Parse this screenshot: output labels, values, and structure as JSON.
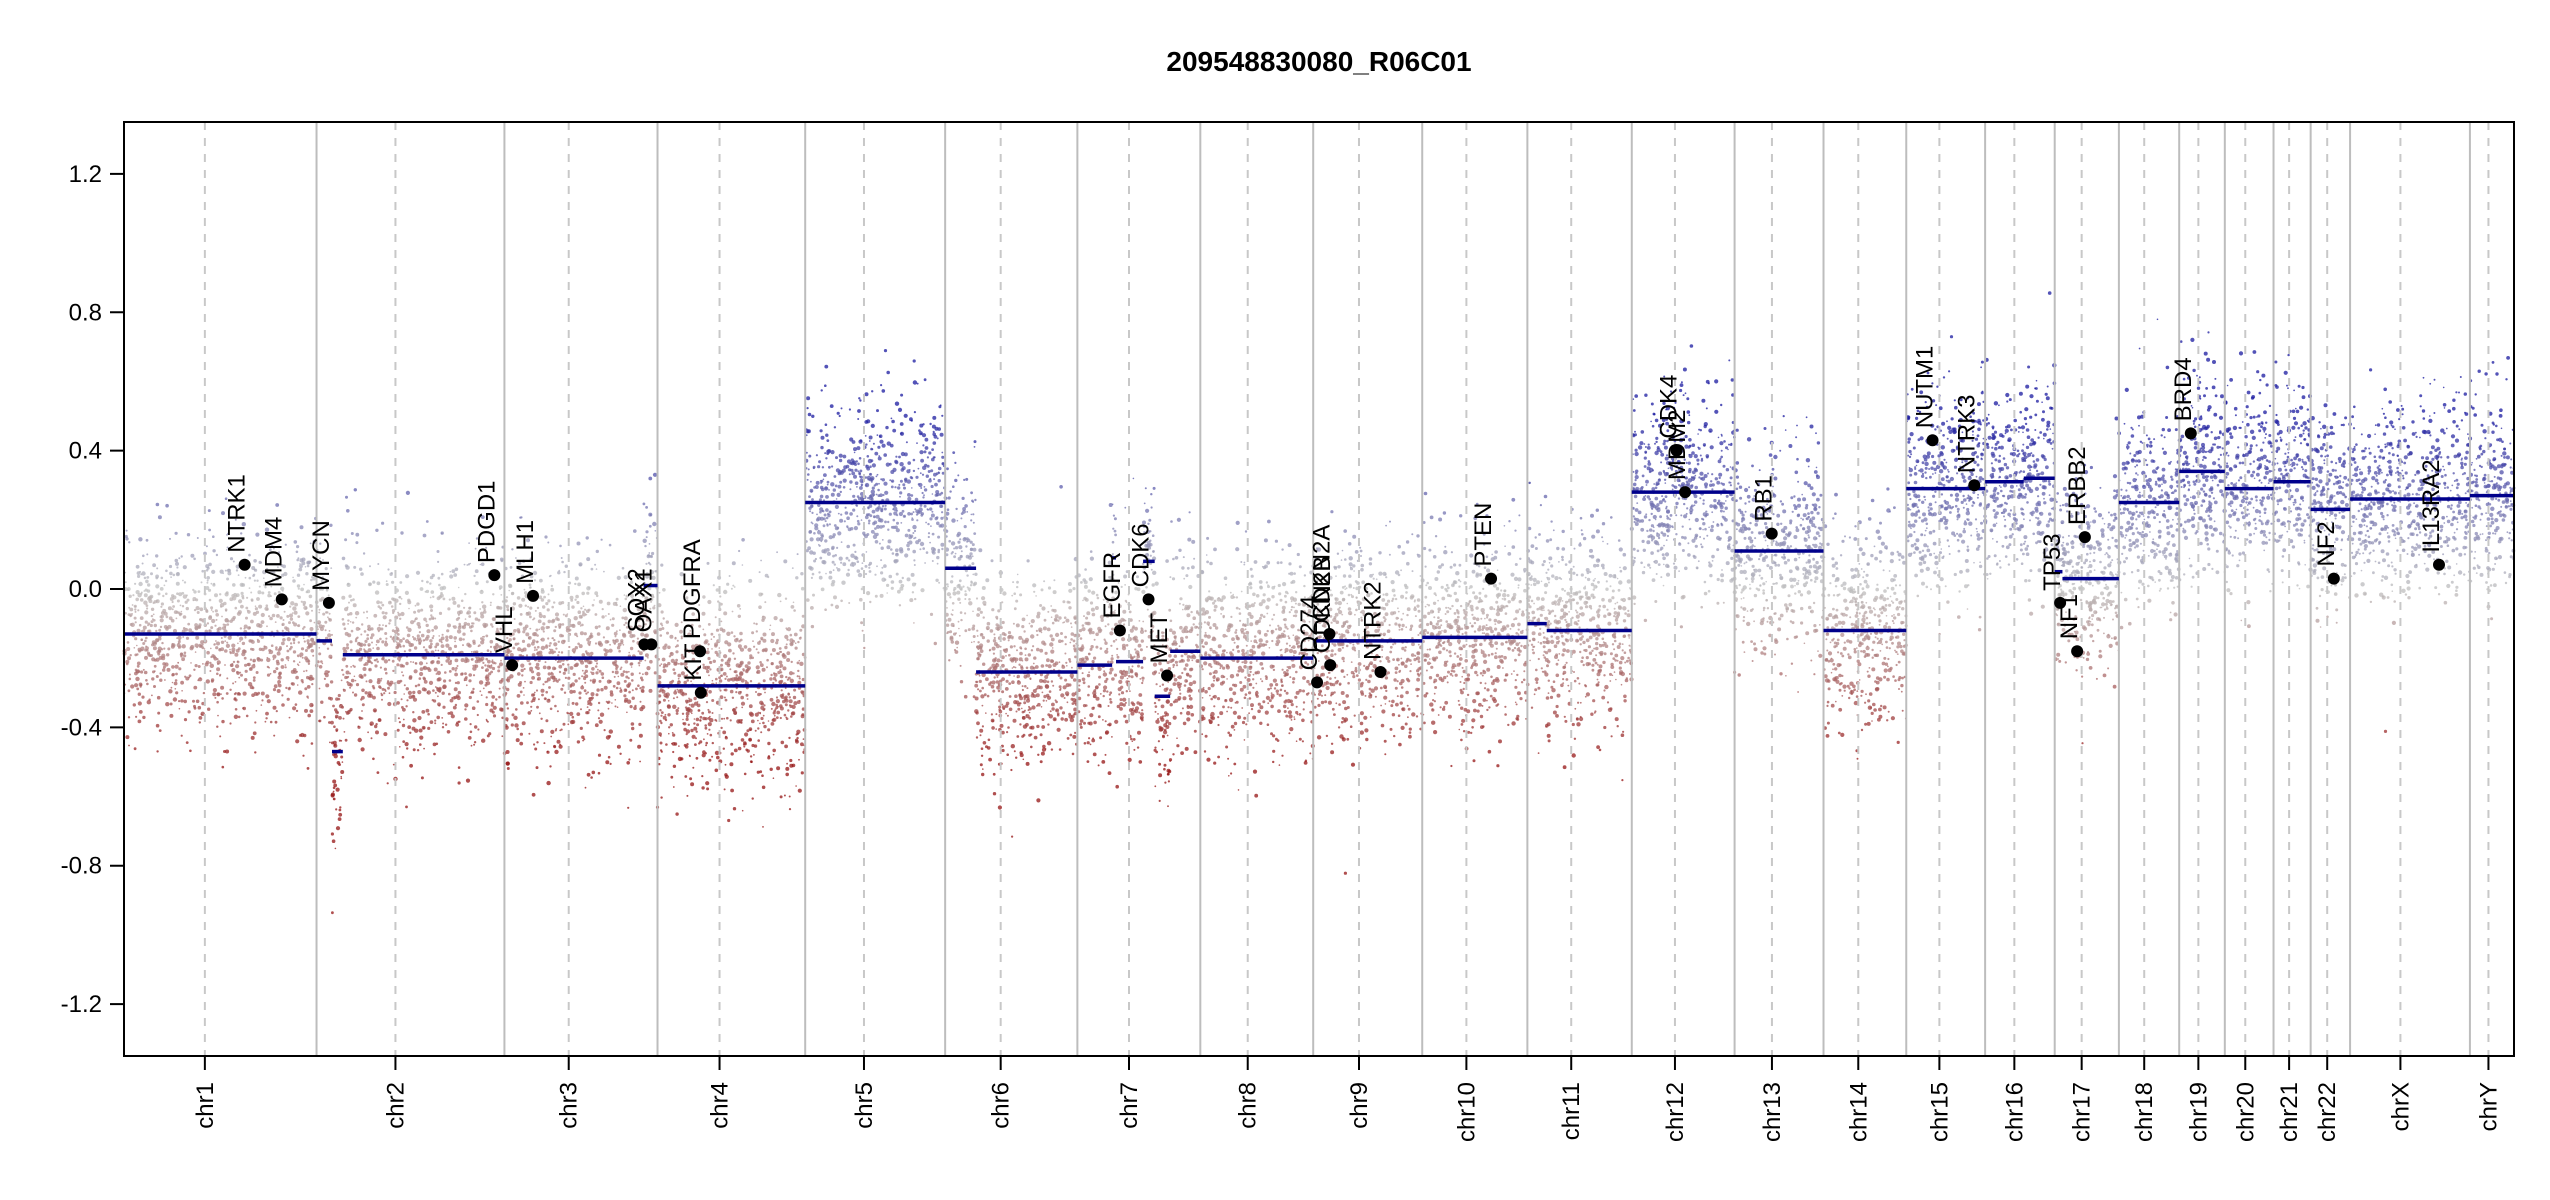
{
  "chart_data": {
    "type": "scatter",
    "title": "209548830080_R06C01",
    "xlabel": "",
    "ylabel": "",
    "ylim": [
      -1.35,
      1.35
    ],
    "y_ticks": [
      -1.2,
      -0.8,
      -0.4,
      0.0,
      0.4,
      0.8,
      1.2
    ],
    "y_tick_labels": [
      "-1.2",
      "-0.8",
      "-0.4",
      "0.0",
      "0.4",
      "0.8",
      "1.2"
    ],
    "grid": false,
    "colors": {
      "gain": "#1a1a8c",
      "loss": "#8b1a1a",
      "neutral": "#bfbfbf",
      "segment": "#00008b",
      "chr_border": "#bdbdbd",
      "centromere": "#c8c8c8",
      "gene_point": "#000000"
    },
    "chromosomes": [
      {
        "name": "chr1",
        "len": 249
      },
      {
        "name": "chr2",
        "len": 243
      },
      {
        "name": "chr3",
        "len": 198
      },
      {
        "name": "chr4",
        "len": 191
      },
      {
        "name": "chr5",
        "len": 181
      },
      {
        "name": "chr6",
        "len": 171
      },
      {
        "name": "chr7",
        "len": 159
      },
      {
        "name": "chr8",
        "len": 146
      },
      {
        "name": "chr9",
        "len": 141
      },
      {
        "name": "chr10",
        "len": 136
      },
      {
        "name": "chr11",
        "len": 135
      },
      {
        "name": "chr12",
        "len": 133
      },
      {
        "name": "chr13",
        "len": 115
      },
      {
        "name": "chr14",
        "len": 107
      },
      {
        "name": "chr15",
        "len": 102
      },
      {
        "name": "chr16",
        "len": 90
      },
      {
        "name": "chr17",
        "len": 83
      },
      {
        "name": "chr18",
        "len": 78
      },
      {
        "name": "chr19",
        "len": 59
      },
      {
        "name": "chr20",
        "len": 63
      },
      {
        "name": "chr21",
        "len": 48
      },
      {
        "name": "chr22",
        "len": 51
      },
      {
        "name": "chrX",
        "len": 155
      },
      {
        "name": "chrY",
        "len": 57
      }
    ],
    "segments": [
      {
        "chr": "chr1",
        "start": 0,
        "end": 249,
        "value": -0.13
      },
      {
        "chr": "chr2",
        "start": 0,
        "end": 20,
        "value": -0.15
      },
      {
        "chr": "chr2",
        "start": 20,
        "end": 34,
        "value": -0.47
      },
      {
        "chr": "chr2",
        "start": 34,
        "end": 243,
        "value": -0.19
      },
      {
        "chr": "chr3",
        "start": 0,
        "end": 180,
        "value": -0.2
      },
      {
        "chr": "chr3",
        "start": 180,
        "end": 198,
        "value": 0.01
      },
      {
        "chr": "chr4",
        "start": 0,
        "end": 191,
        "value": -0.28
      },
      {
        "chr": "chr5",
        "start": 0,
        "end": 181,
        "value": 0.25
      },
      {
        "chr": "chr6",
        "start": 0,
        "end": 40,
        "value": 0.06
      },
      {
        "chr": "chr6",
        "start": 40,
        "end": 171,
        "value": -0.24
      },
      {
        "chr": "chr7",
        "start": 0,
        "end": 45,
        "value": -0.22
      },
      {
        "chr": "chr7",
        "start": 45,
        "end": 50,
        "value": 0.09
      },
      {
        "chr": "chr7",
        "start": 50,
        "end": 85,
        "value": -0.21
      },
      {
        "chr": "chr7",
        "start": 85,
        "end": 100,
        "value": 0.08
      },
      {
        "chr": "chr7",
        "start": 100,
        "end": 120,
        "value": -0.31
      },
      {
        "chr": "chr7",
        "start": 120,
        "end": 159,
        "value": -0.18
      },
      {
        "chr": "chr8",
        "start": 0,
        "end": 146,
        "value": -0.2
      },
      {
        "chr": "chr9",
        "start": 0,
        "end": 141,
        "value": -0.15
      },
      {
        "chr": "chr10",
        "start": 0,
        "end": 136,
        "value": -0.14
      },
      {
        "chr": "chr11",
        "start": 0,
        "end": 25,
        "value": -0.1
      },
      {
        "chr": "chr11",
        "start": 25,
        "end": 135,
        "value": -0.12
      },
      {
        "chr": "chr12",
        "start": 0,
        "end": 133,
        "value": 0.28
      },
      {
        "chr": "chr13",
        "start": 0,
        "end": 115,
        "value": 0.11
      },
      {
        "chr": "chr14",
        "start": 0,
        "end": 107,
        "value": -0.12
      },
      {
        "chr": "chr15",
        "start": 0,
        "end": 102,
        "value": 0.29
      },
      {
        "chr": "chr16",
        "start": 0,
        "end": 50,
        "value": 0.31
      },
      {
        "chr": "chr16",
        "start": 50,
        "end": 90,
        "value": 0.32
      },
      {
        "chr": "chr17",
        "start": 0,
        "end": 10,
        "value": 0.05
      },
      {
        "chr": "chr17",
        "start": 10,
        "end": 83,
        "value": 0.03
      },
      {
        "chr": "chr18",
        "start": 0,
        "end": 78,
        "value": 0.25
      },
      {
        "chr": "chr19",
        "start": 0,
        "end": 59,
        "value": 0.34
      },
      {
        "chr": "chr20",
        "start": 0,
        "end": 63,
        "value": 0.29
      },
      {
        "chr": "chr21",
        "start": 0,
        "end": 48,
        "value": 0.31
      },
      {
        "chr": "chr22",
        "start": 0,
        "end": 51,
        "value": 0.23
      },
      {
        "chr": "chrX",
        "start": 0,
        "end": 155,
        "value": 0.26
      },
      {
        "chr": "chrY",
        "start": 0,
        "end": 57,
        "value": 0.27
      }
    ],
    "genes": [
      {
        "name": "NTRK1",
        "chr": "chr1",
        "pos": 156,
        "value": 0.07
      },
      {
        "name": "MDM4",
        "chr": "chr1",
        "pos": 204,
        "value": -0.03
      },
      {
        "name": "MYCN",
        "chr": "chr2",
        "pos": 16,
        "value": -0.04
      },
      {
        "name": "PDGD1",
        "chr": "chr2",
        "pos": 230,
        "value": 0.04
      },
      {
        "name": "VHL",
        "chr": "chr3",
        "pos": 10,
        "value": -0.22
      },
      {
        "name": "MLH1",
        "chr": "chr3",
        "pos": 37,
        "value": -0.02
      },
      {
        "name": "SOX2",
        "chr": "chr3",
        "pos": 181,
        "value": -0.16
      },
      {
        "name": "OAX1",
        "chr": "chr3",
        "pos": 190,
        "value": -0.16
      },
      {
        "name": "PDGFRA",
        "chr": "chr4",
        "pos": 55,
        "value": -0.18
      },
      {
        "name": "KIT",
        "chr": "chr4",
        "pos": 56,
        "value": -0.3
      },
      {
        "name": "EGFR",
        "chr": "chr7",
        "pos": 55,
        "value": -0.12
      },
      {
        "name": "CDK6",
        "chr": "chr7",
        "pos": 92,
        "value": -0.03
      },
      {
        "name": "MET",
        "chr": "chr7",
        "pos": 116,
        "value": -0.25
      },
      {
        "name": "CD274",
        "chr": "chr9",
        "pos": 5,
        "value": -0.27
      },
      {
        "name": "CDKN2A",
        "chr": "chr9",
        "pos": 21,
        "value": -0.13
      },
      {
        "name": "CDKN2B",
        "chr": "chr9",
        "pos": 22,
        "value": -0.22
      },
      {
        "name": "NTRK2",
        "chr": "chr9",
        "pos": 87,
        "value": -0.24
      },
      {
        "name": "PTEN",
        "chr": "chr10",
        "pos": 89,
        "value": 0.03
      },
      {
        "name": "CDK4",
        "chr": "chr12",
        "pos": 58,
        "value": 0.4
      },
      {
        "name": "MDM2",
        "chr": "chr12",
        "pos": 69,
        "value": 0.28
      },
      {
        "name": "RB1",
        "chr": "chr13",
        "pos": 48,
        "value": 0.16
      },
      {
        "name": "NUTM1",
        "chr": "chr15",
        "pos": 34,
        "value": 0.43
      },
      {
        "name": "NTRK3",
        "chr": "chr15",
        "pos": 88,
        "value": 0.3
      },
      {
        "name": "TP53",
        "chr": "chr17",
        "pos": 7,
        "value": -0.04
      },
      {
        "name": "NF1",
        "chr": "chr17",
        "pos": 29,
        "value": -0.18
      },
      {
        "name": "ERBB2",
        "chr": "chr17",
        "pos": 39,
        "value": 0.15
      },
      {
        "name": "BRD4",
        "chr": "chr19",
        "pos": 15,
        "value": 0.45
      },
      {
        "name": "NF2",
        "chr": "chr22",
        "pos": 30,
        "value": 0.03
      },
      {
        "name": "IL13RA2",
        "chr": "chrX",
        "pos": 115,
        "value": 0.07
      }
    ]
  }
}
